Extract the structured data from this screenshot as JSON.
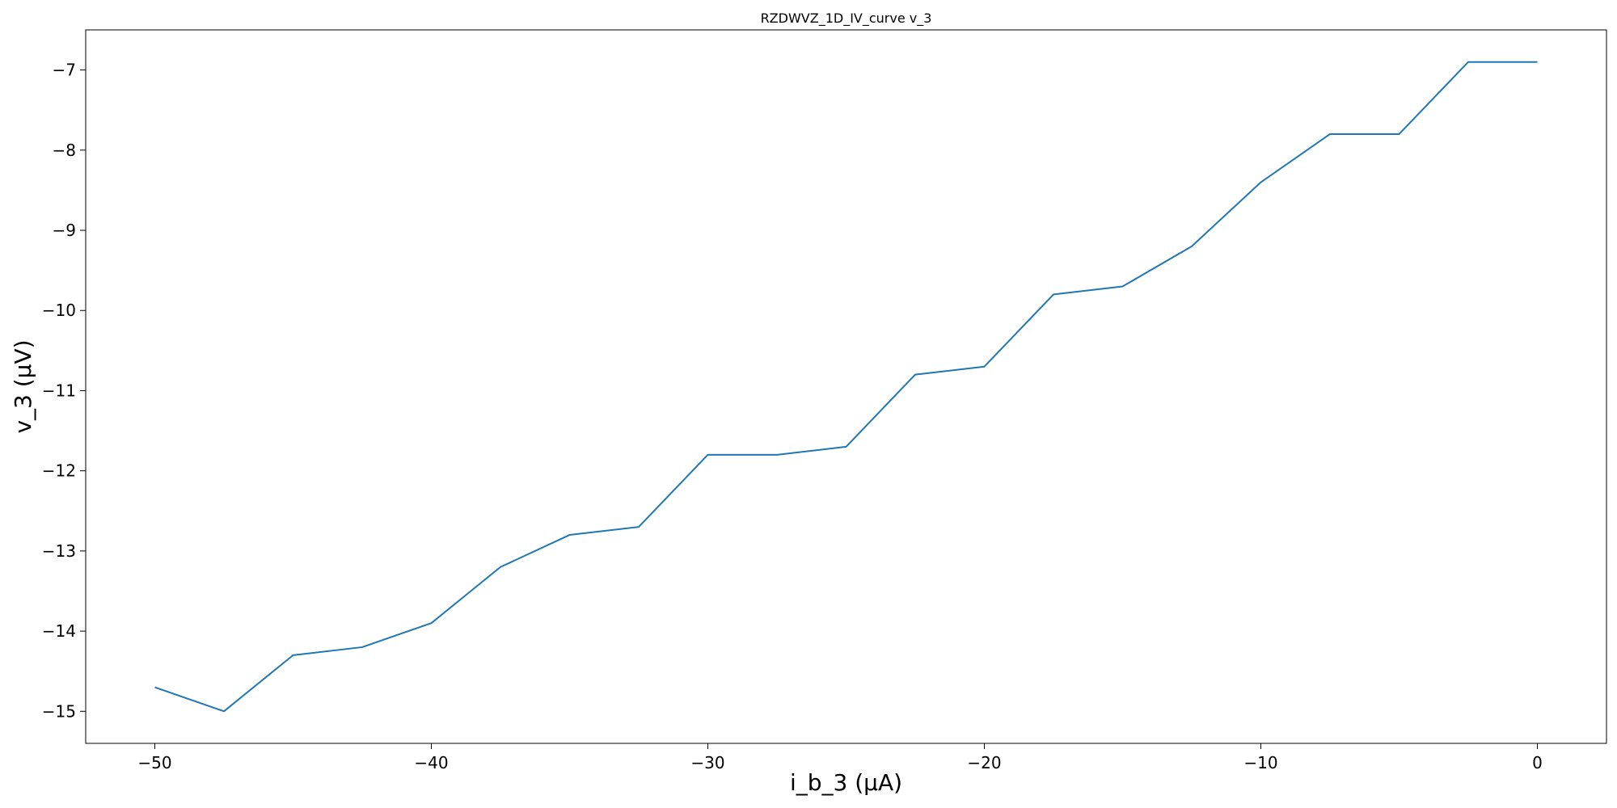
{
  "chart_data": {
    "type": "line",
    "title": "RZDWVZ_1D_IV_curve v_3",
    "xlabel": "i_b_3 (μA)",
    "ylabel": "v_3 (μV)",
    "xlim": [
      -52.5,
      2.5
    ],
    "ylim": [
      -15.4,
      -6.5
    ],
    "xticks": [
      -50,
      -40,
      -30,
      -20,
      -10,
      0
    ],
    "xtick_labels": [
      "−50",
      "−40",
      "−30",
      "−20",
      "−10",
      "0"
    ],
    "yticks": [
      -15,
      -14,
      -13,
      -12,
      -11,
      -10,
      -9,
      -8,
      -7
    ],
    "ytick_labels": [
      "−15",
      "−14",
      "−13",
      "−12",
      "−11",
      "−10",
      "−9",
      "−8",
      "−7"
    ],
    "grid": false,
    "series": [
      {
        "color": "#1f77b4",
        "x": [
          -50,
          -47.5,
          -45,
          -42.5,
          -40,
          -37.5,
          -35,
          -32.5,
          -30,
          -27.5,
          -25,
          -22.5,
          -20,
          -17.5,
          -15,
          -12.5,
          -10,
          -7.5,
          -5,
          -2.5,
          0
        ],
        "y": [
          -14.7,
          -15.0,
          -14.3,
          -14.2,
          -13.9,
          -13.2,
          -12.8,
          -12.7,
          -11.8,
          -11.8,
          -11.7,
          -10.8,
          -10.7,
          -9.8,
          -9.7,
          -9.2,
          -8.4,
          -7.8,
          -7.8,
          -6.9,
          -6.9
        ]
      }
    ]
  }
}
